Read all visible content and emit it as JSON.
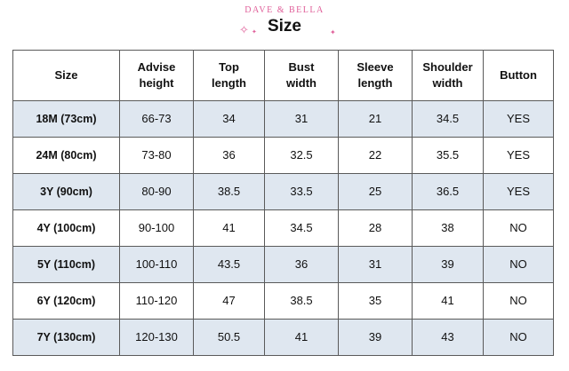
{
  "header": {
    "brand": "DAVE & BELLA",
    "title": "Size"
  },
  "table": {
    "columns": [
      [
        "Size"
      ],
      [
        "Advise",
        "height"
      ],
      [
        "Top",
        "length"
      ],
      [
        "Bust",
        "width"
      ],
      [
        "Sleeve",
        "length"
      ],
      [
        "Shoulder",
        "width"
      ],
      [
        "Button"
      ]
    ],
    "rows": [
      [
        "18M (73cm)",
        "66-73",
        "34",
        "31",
        "21",
        "34.5",
        "YES"
      ],
      [
        "24M (80cm)",
        "73-80",
        "36",
        "32.5",
        "22",
        "35.5",
        "YES"
      ],
      [
        "3Y (90cm)",
        "80-90",
        "38.5",
        "33.5",
        "25",
        "36.5",
        "YES"
      ],
      [
        "4Y (100cm)",
        "90-100",
        "41",
        "34.5",
        "28",
        "38",
        "NO"
      ],
      [
        "5Y (110cm)",
        "100-110",
        "43.5",
        "36",
        "31",
        "39",
        "NO"
      ],
      [
        "6Y (120cm)",
        "110-120",
        "47",
        "38.5",
        "35",
        "41",
        "NO"
      ],
      [
        "7Y (130cm)",
        "120-130",
        "50.5",
        "41",
        "39",
        "43",
        "NO"
      ]
    ]
  },
  "colors": {
    "brand_pink": "#e0609a",
    "row_shade": "#dfe7f0",
    "border": "#5a5a5a"
  }
}
